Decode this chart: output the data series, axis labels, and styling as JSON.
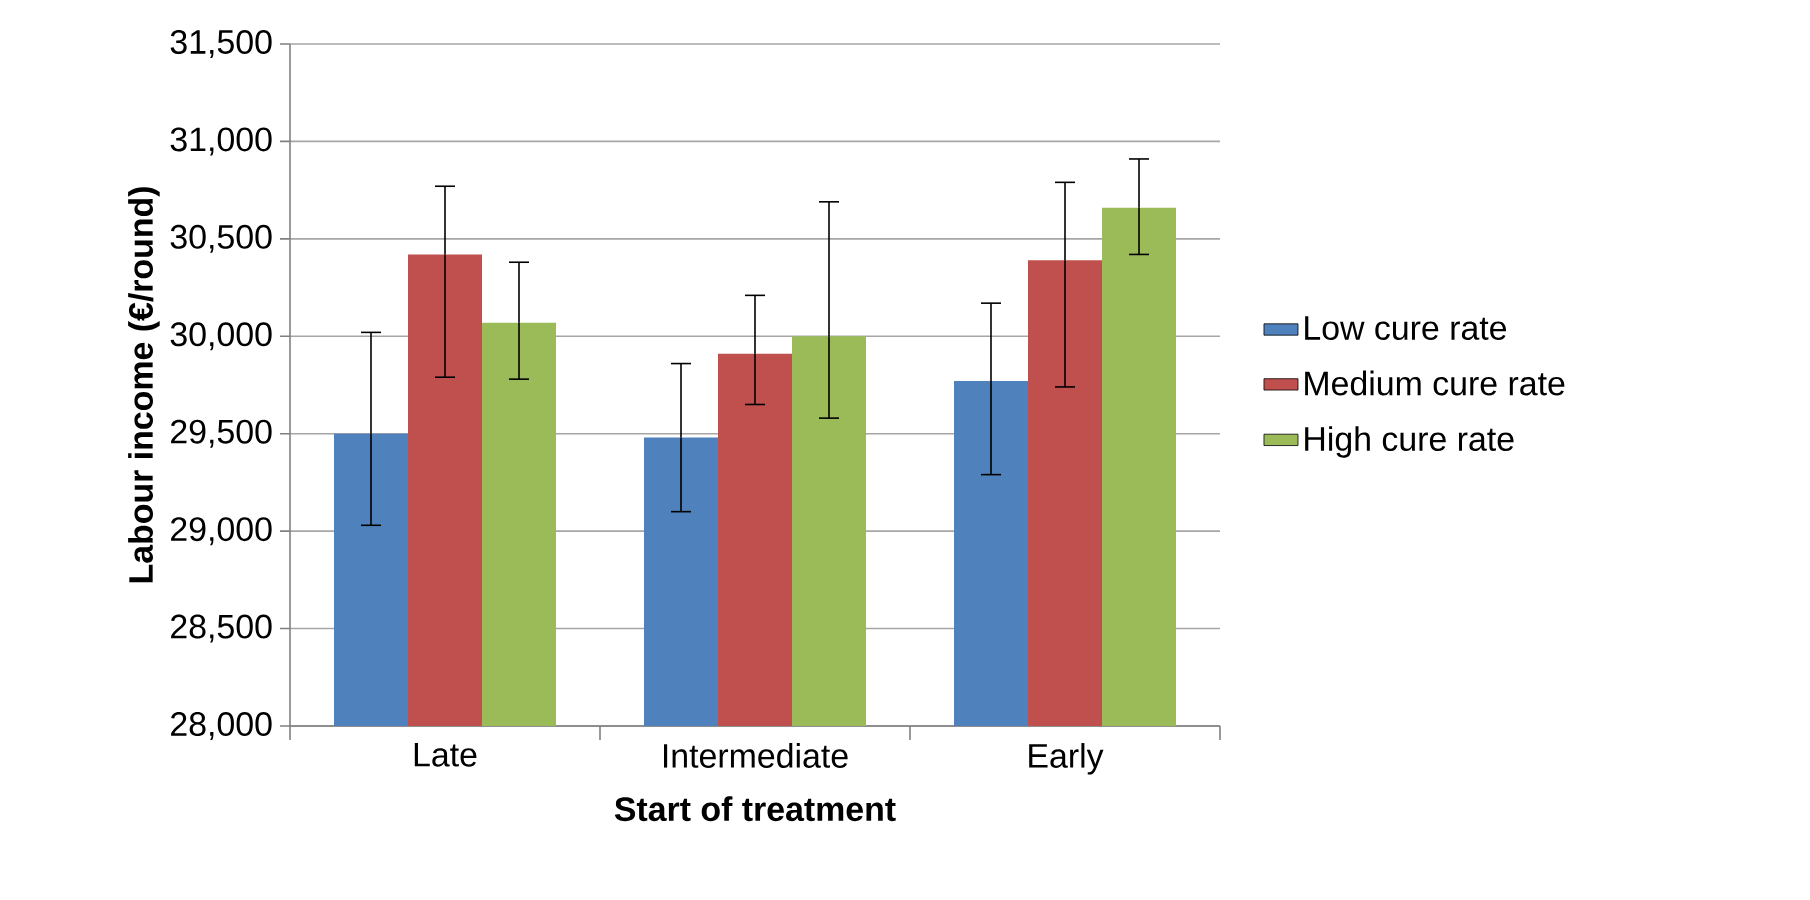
{
  "chart_data": {
    "type": "bar",
    "xlabel": "Start of treatment",
    "ylabel": "Labour income (€/round)",
    "categories": [
      "Late",
      "Intermediate",
      "Early"
    ],
    "series": [
      {
        "name": "Low cure rate",
        "color": "#4f81bd",
        "values": [
          29500,
          29480,
          29770
        ],
        "errors": [
          [
            29030,
            30020
          ],
          [
            29100,
            29860
          ],
          [
            29290,
            30170
          ]
        ]
      },
      {
        "name": "Medium cure rate",
        "color": "#c0504d",
        "values": [
          30420,
          29910,
          30390
        ],
        "errors": [
          [
            29790,
            30770
          ],
          [
            29650,
            30210
          ],
          [
            29740,
            30790
          ]
        ]
      },
      {
        "name": "High cure rate",
        "color": "#9bbb59",
        "values": [
          30070,
          30000,
          30660
        ],
        "errors": [
          [
            29780,
            30380
          ],
          [
            29580,
            30690
          ],
          [
            30420,
            30910
          ]
        ]
      }
    ],
    "ylim": [
      28000,
      31500
    ],
    "yticks": [
      {
        "value": 28000,
        "label": "28,000"
      },
      {
        "value": 28500,
        "label": "28,500"
      },
      {
        "value": 29000,
        "label": "29,000"
      },
      {
        "value": 29500,
        "label": "29,500"
      },
      {
        "value": 30000,
        "label": "30,000"
      },
      {
        "value": 30500,
        "label": "30,500"
      },
      {
        "value": 31000,
        "label": "31,000"
      },
      {
        "value": 31500,
        "label": "31,500"
      }
    ],
    "grid": "y",
    "legend": "right"
  }
}
